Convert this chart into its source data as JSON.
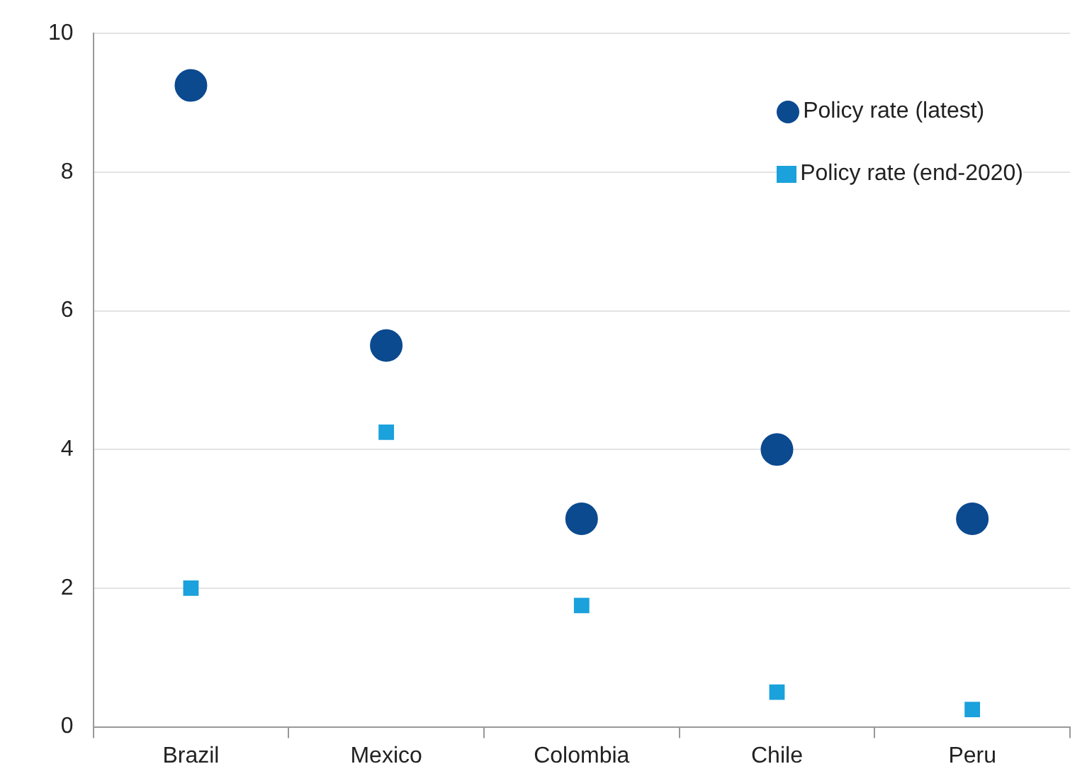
{
  "chart_data": {
    "type": "scatter",
    "categories": [
      "Brazil",
      "Mexico",
      "Colombia",
      "Chile",
      "Peru"
    ],
    "series": [
      {
        "name": "Policy rate (latest)",
        "color": "#0b4a8f",
        "marker": "circle",
        "values": [
          9.25,
          5.5,
          3,
          4,
          3
        ]
      },
      {
        "name": "Policy rate (end-2020)",
        "color": "#1ba1dc",
        "marker": "square",
        "values": [
          2,
          4.25,
          1.75,
          0.5,
          0.25
        ]
      }
    ],
    "ylim": [
      0,
      10
    ],
    "yticks": [
      0,
      2,
      4,
      6,
      8,
      10
    ],
    "grid": "y",
    "legend": "top right"
  }
}
